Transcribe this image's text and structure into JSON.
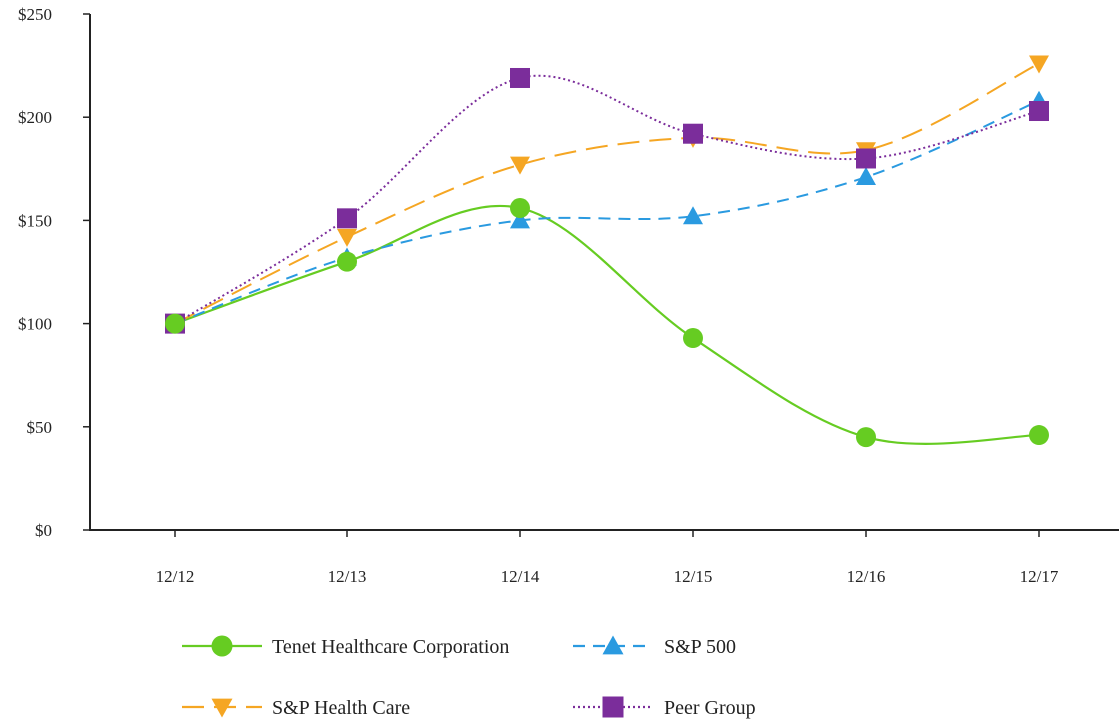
{
  "chart_data": {
    "type": "line",
    "categories": [
      "12/12",
      "12/13",
      "12/14",
      "12/15",
      "12/16",
      "12/17"
    ],
    "ylim": [
      0,
      250
    ],
    "y_ticks": [
      "$0",
      "$50",
      "$100",
      "$150",
      "$200",
      "$250"
    ],
    "y_tick_values": [
      0,
      50,
      100,
      150,
      200,
      250
    ],
    "grid": false,
    "legend_placement": "bottom",
    "series": [
      {
        "name": "Tenet Healthcare Corporation",
        "values": [
          100,
          130,
          156,
          93,
          45,
          46
        ],
        "color": "#66cc22",
        "marker": "circle",
        "dash": "solid"
      },
      {
        "name": "S&P 500",
        "values": [
          100,
          132,
          150,
          152,
          171,
          208
        ],
        "color": "#2a9ae0",
        "marker": "triangle-up",
        "dash": "dashed"
      },
      {
        "name": "S&P Health Care",
        "values": [
          100,
          142,
          177,
          190,
          184,
          226
        ],
        "color": "#f5a623",
        "marker": "triangle-down",
        "dash": "long-dash"
      },
      {
        "name": "Peer Group",
        "values": [
          100,
          151,
          219,
          192,
          180,
          203
        ],
        "color": "#7b2d9b",
        "marker": "square",
        "dash": "dotted"
      }
    ]
  }
}
